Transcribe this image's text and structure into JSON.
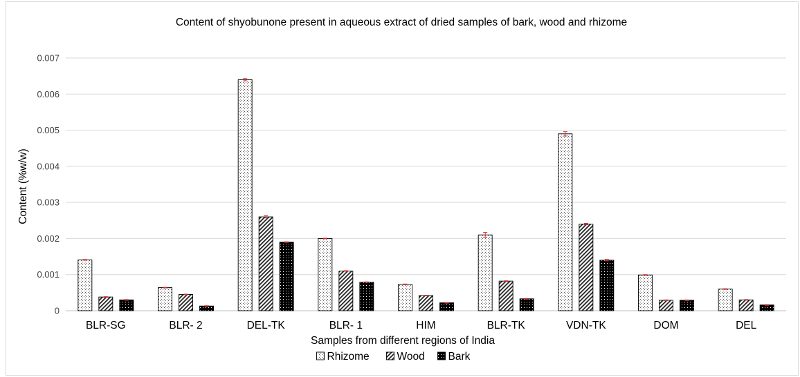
{
  "chart_data": {
    "type": "bar",
    "title": "Content of shyobunone present in aqueous extract of dried samples of bark, wood and rhizome",
    "xlabel": "Samples from different regions of India",
    "ylabel": "Content (%w/w)",
    "categories": [
      "BLR-SG",
      "BLR- 2",
      "DEL-TK",
      "BLR- 1",
      "HIM",
      "BLR-TK",
      "VDN-TK",
      "DOM",
      "DEL"
    ],
    "y_ticks": [
      "0",
      "0.001",
      "0.002",
      "0.003",
      "0.004",
      "0.005",
      "0.006",
      "0.007"
    ],
    "ylim": [
      0,
      0.007
    ],
    "grid": true,
    "legend_position": "bottom",
    "series": [
      {
        "name": "Rhizome",
        "pattern": "dots",
        "values": [
          0.00141,
          0.00064,
          0.0064,
          0.002,
          0.00073,
          0.0021,
          0.0049,
          0.00099,
          0.0006
        ],
        "errors": [
          1e-05,
          1e-05,
          3e-05,
          1e-05,
          1e-05,
          7e-05,
          6e-05,
          1e-05,
          1e-05
        ]
      },
      {
        "name": "Wood",
        "pattern": "diagonal-hatch",
        "values": [
          0.00038,
          0.00045,
          0.0026,
          0.0011,
          0.00042,
          0.00082,
          0.0024,
          0.00029,
          0.0003
        ],
        "errors": [
          1e-05,
          1e-05,
          3e-05,
          1e-05,
          1e-05,
          1e-05,
          2e-05,
          1e-05,
          1e-05
        ]
      },
      {
        "name": "Bark",
        "pattern": "solid-dots",
        "values": [
          0.0003,
          0.00013,
          0.0019,
          0.00079,
          0.00022,
          0.00033,
          0.0014,
          0.00029,
          0.00016
        ],
        "errors": [
          1e-05,
          1e-05,
          1e-05,
          1e-05,
          1e-05,
          1e-05,
          2e-05,
          1e-05,
          1e-05
        ]
      }
    ],
    "colors": {
      "bar_outline": "#000000",
      "error_bar": "#e03030",
      "gridline": "#d9d9d9",
      "axis_line": "#bfbfbf"
    }
  }
}
